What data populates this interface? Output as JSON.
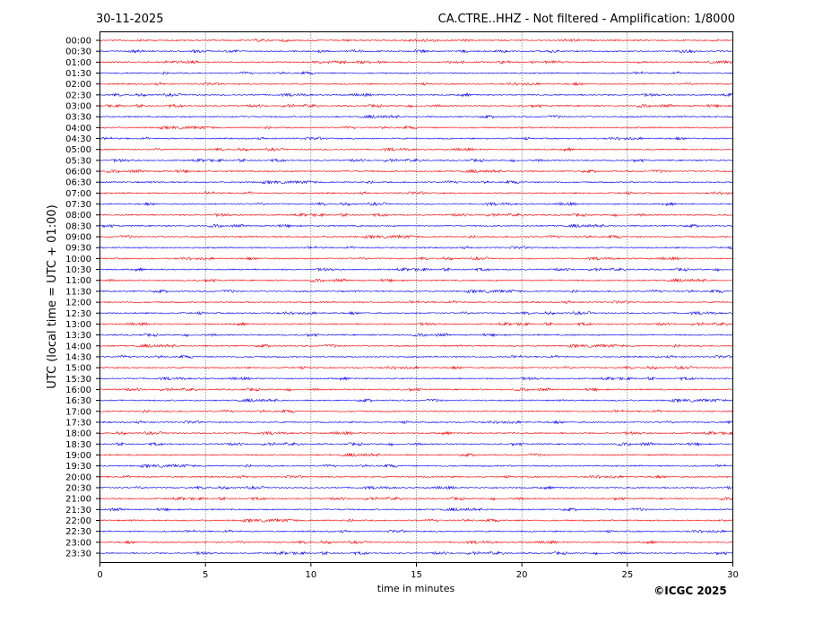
{
  "header": {
    "date": "30-11-2025",
    "title": "CA.CTRE..HHZ - Not filtered - Amplification: 1/8000"
  },
  "copyright": "©ICGC 2025",
  "chart_data": {
    "type": "line",
    "xlabel": "time in minutes",
    "ylabel": "UTC (local time = UTC + 01:00)",
    "xlim": [
      0,
      30
    ],
    "xticks": [
      "0",
      "5",
      "10",
      "15",
      "20",
      "25",
      "30"
    ],
    "grid": "vertical dotted at x ticks",
    "trace_colors": [
      "#ff0000",
      "#0000ff"
    ],
    "traces": [
      "00:00",
      "00:30",
      "01:00",
      "01:30",
      "02:00",
      "02:30",
      "03:00",
      "03:30",
      "04:00",
      "04:30",
      "05:00",
      "05:30",
      "06:00",
      "06:30",
      "07:00",
      "07:30",
      "08:00",
      "08:30",
      "09:00",
      "09:30",
      "10:00",
      "10:30",
      "11:00",
      "11:30",
      "12:00",
      "12:30",
      "13:00",
      "13:30",
      "14:00",
      "14:30",
      "15:00",
      "15:30",
      "16:00",
      "16:30",
      "17:00",
      "17:30",
      "18:00",
      "18:30",
      "19:00",
      "19:30",
      "20:00",
      "20:30",
      "21:00",
      "21:30",
      "22:00",
      "22:30",
      "23:00",
      "23:30"
    ]
  }
}
